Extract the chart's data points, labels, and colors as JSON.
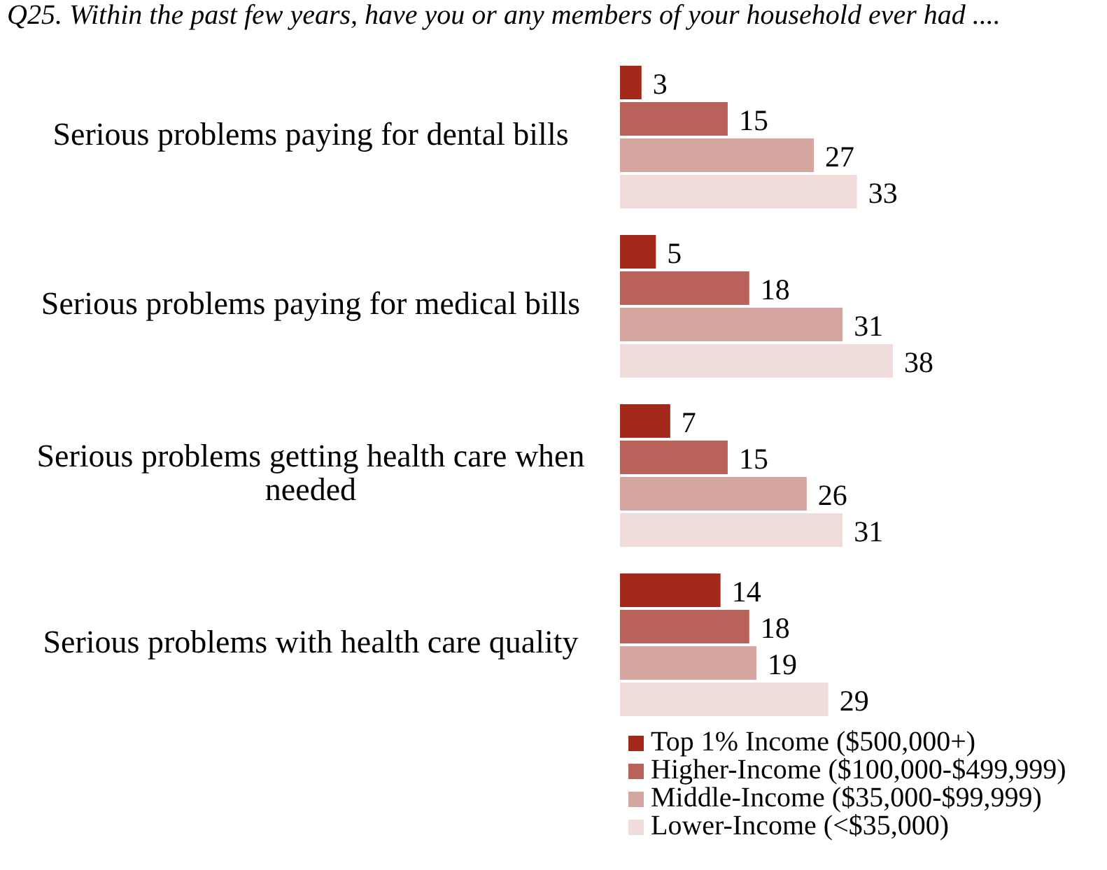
{
  "chart_data": {
    "type": "bar",
    "orientation": "horizontal",
    "title": "Q25. Within the past few years, have you or any members of your household ever had ....",
    "categories": [
      "Serious problems paying for dental bills",
      "Serious problems paying for medical bills",
      "Serious problems getting health care when needed",
      "Serious problems with health care quality"
    ],
    "series": [
      {
        "name": "Top 1% Income ($500,000+)",
        "color": "#a3281c",
        "values": [
          3,
          5,
          7,
          14
        ]
      },
      {
        "name": "Higher-Income ($100,000-$499,999)",
        "color": "#b9625a",
        "values": [
          15,
          18,
          15,
          18
        ]
      },
      {
        "name": "Middle-Income ($35,000-$99,999)",
        "color": "#d5a59f",
        "values": [
          27,
          31,
          26,
          19
        ]
      },
      {
        "name": "Lower-Income (<$35,000)",
        "color": "#f0dcda",
        "values": [
          33,
          38,
          31,
          29
        ]
      }
    ],
    "data_labels": true,
    "legend": "bottom right"
  }
}
